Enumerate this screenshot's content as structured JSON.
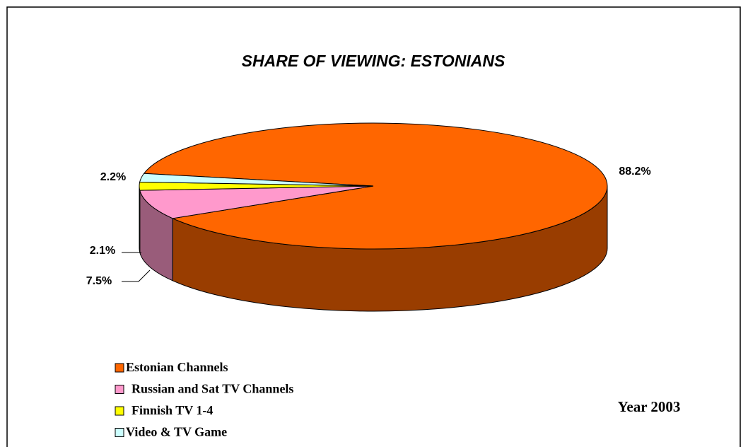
{
  "chart_data": {
    "type": "pie3d",
    "title": "SHARE OF VIEWING: ESTONIANS",
    "annotation": "Year 2003",
    "series": [
      {
        "name": "Estonian Channels",
        "color": "#ff6600",
        "values": [
          88.2
        ],
        "value_labels": [
          "88.2%"
        ]
      },
      {
        "name": "Russian and Sat TV Channels",
        "color": "#ff99cc",
        "values": [
          7.5
        ],
        "value_labels": [
          "7.5%"
        ]
      },
      {
        "name": "Finnish TV 1-4",
        "color": "#ffff00",
        "values": [
          2.1
        ],
        "value_labels": [
          "2.1%"
        ]
      },
      {
        "name": "Video & TV Game",
        "color": "#ccffff",
        "values": [
          2.2
        ],
        "value_labels": [
          "2.2%"
        ]
      }
    ]
  }
}
